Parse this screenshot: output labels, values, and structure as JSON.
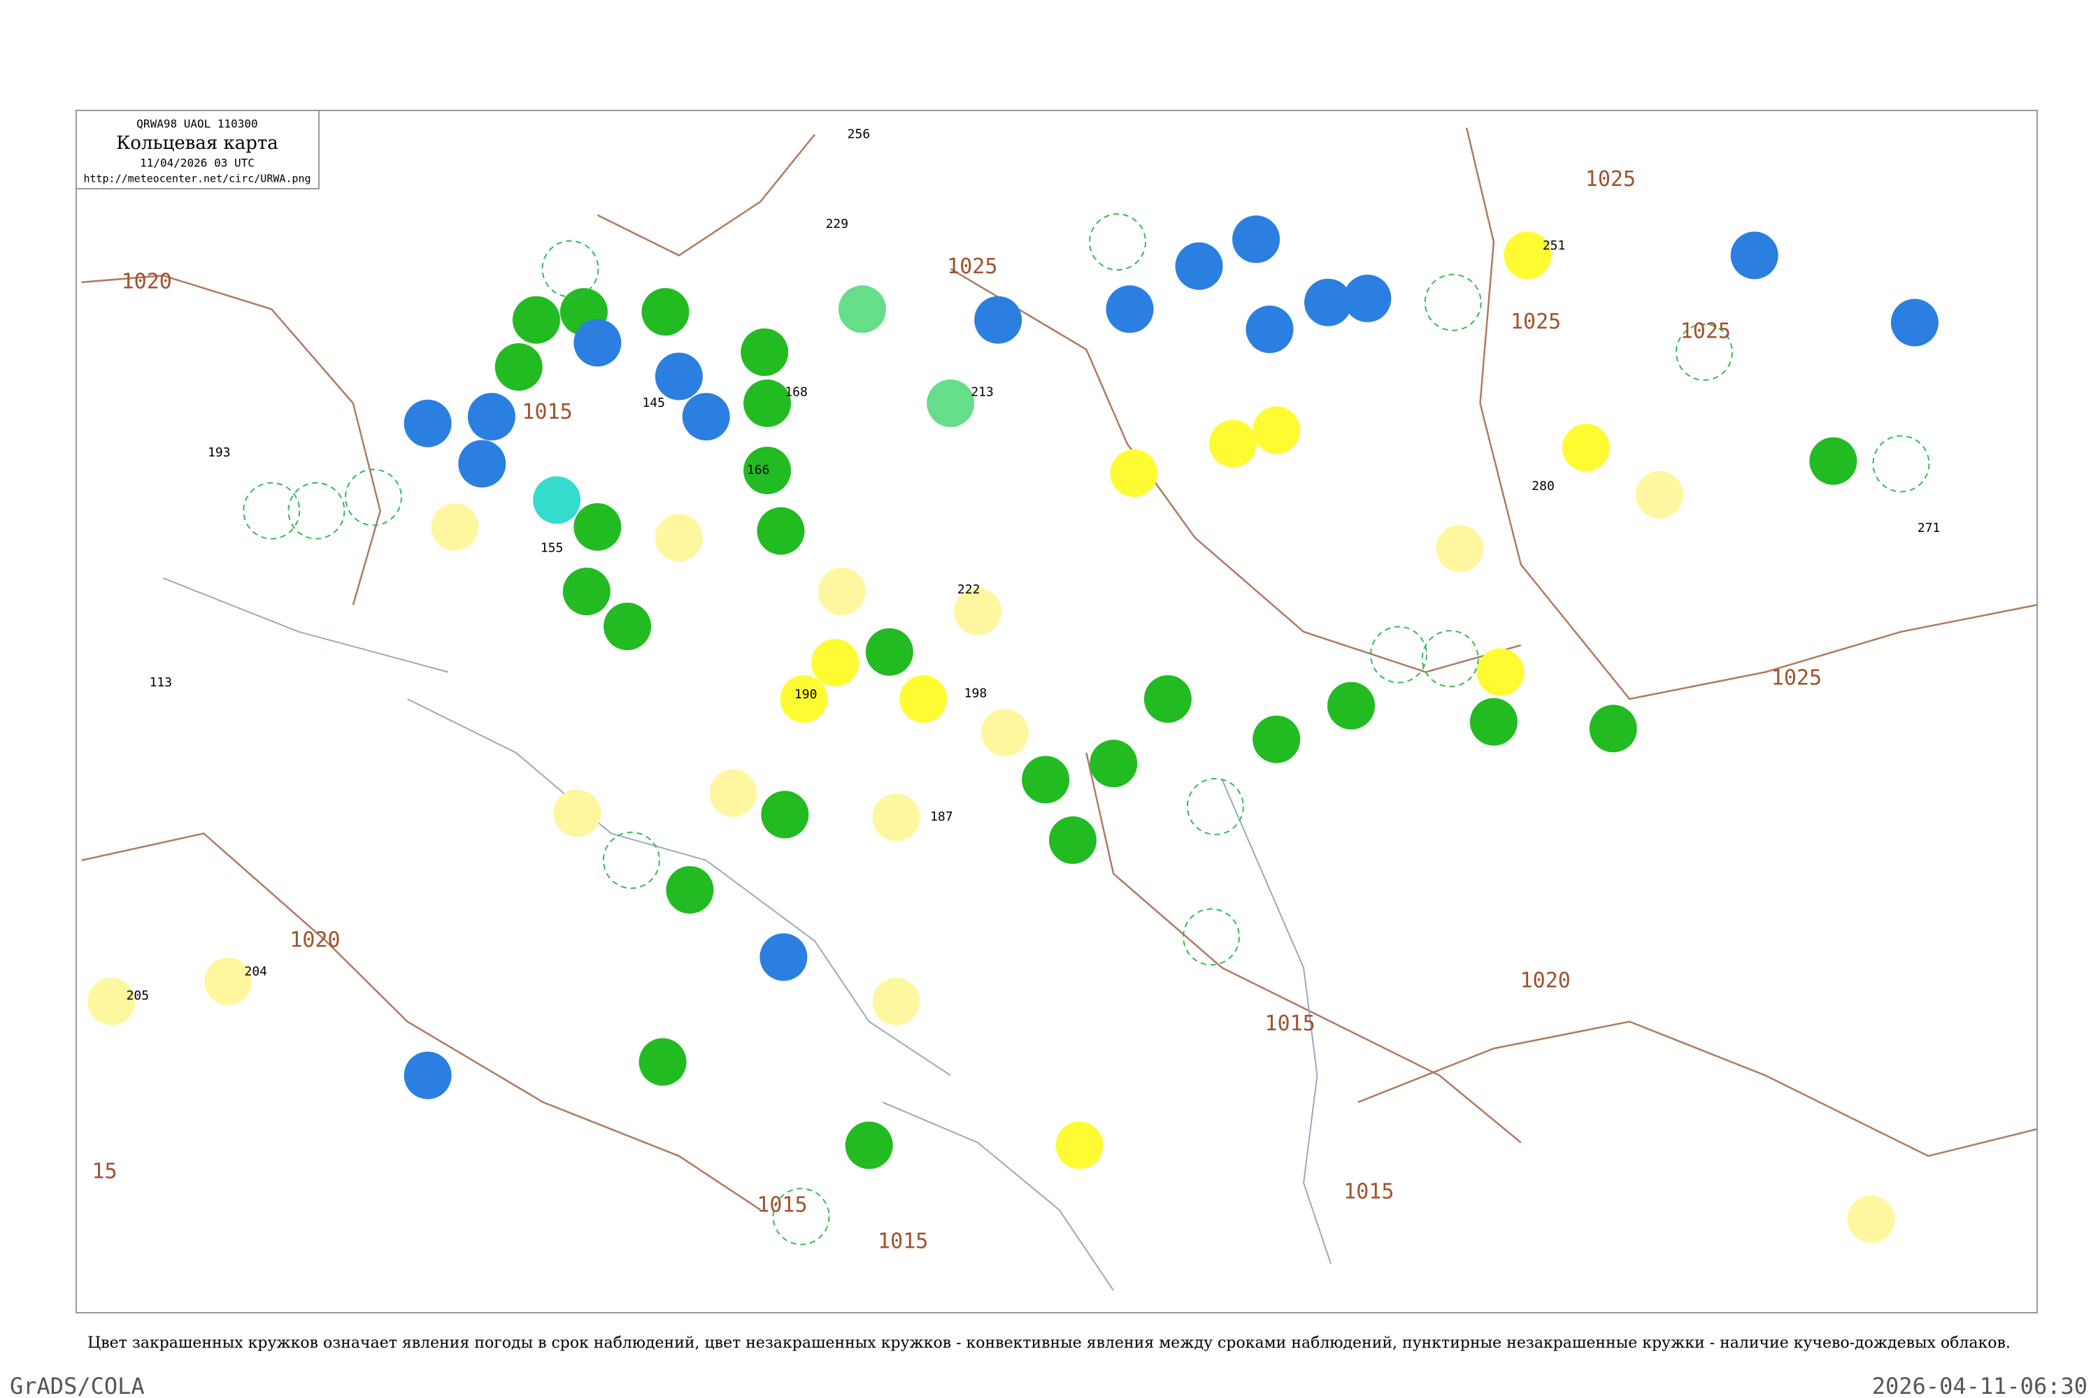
{
  "header": {
    "code": "QRWA98  UAOL  110300",
    "title": "Кольцевая карта",
    "date": "11/04/2026 03 UTC",
    "url": "http://meteocenter.net/circ/URWA.png"
  },
  "isobar_labels": [
    "1020",
    "1015",
    "1025",
    "1020",
    "1015",
    "1025",
    "1015",
    "1015",
    "1025",
    "1025",
    "1025",
    "1020",
    "1015",
    "15"
  ],
  "station_values": [
    "145",
    "166",
    "168",
    "187",
    "213",
    "229",
    "251",
    "280",
    "193",
    "204",
    "205",
    "113",
    "155",
    "190",
    "198",
    "222",
    "256",
    "271"
  ],
  "caption": "Цвет закрашенных кружков означает явления погоды в срок наблюдений, цвет незакрашенных кружков - конвективные явления между сроками наблюдений, пунктирные незакрашенные кружки - наличие кучево-дождевых облаков.",
  "footer": {
    "left": "GrADS/COLA",
    "right": "2026-04-11-06:30"
  }
}
